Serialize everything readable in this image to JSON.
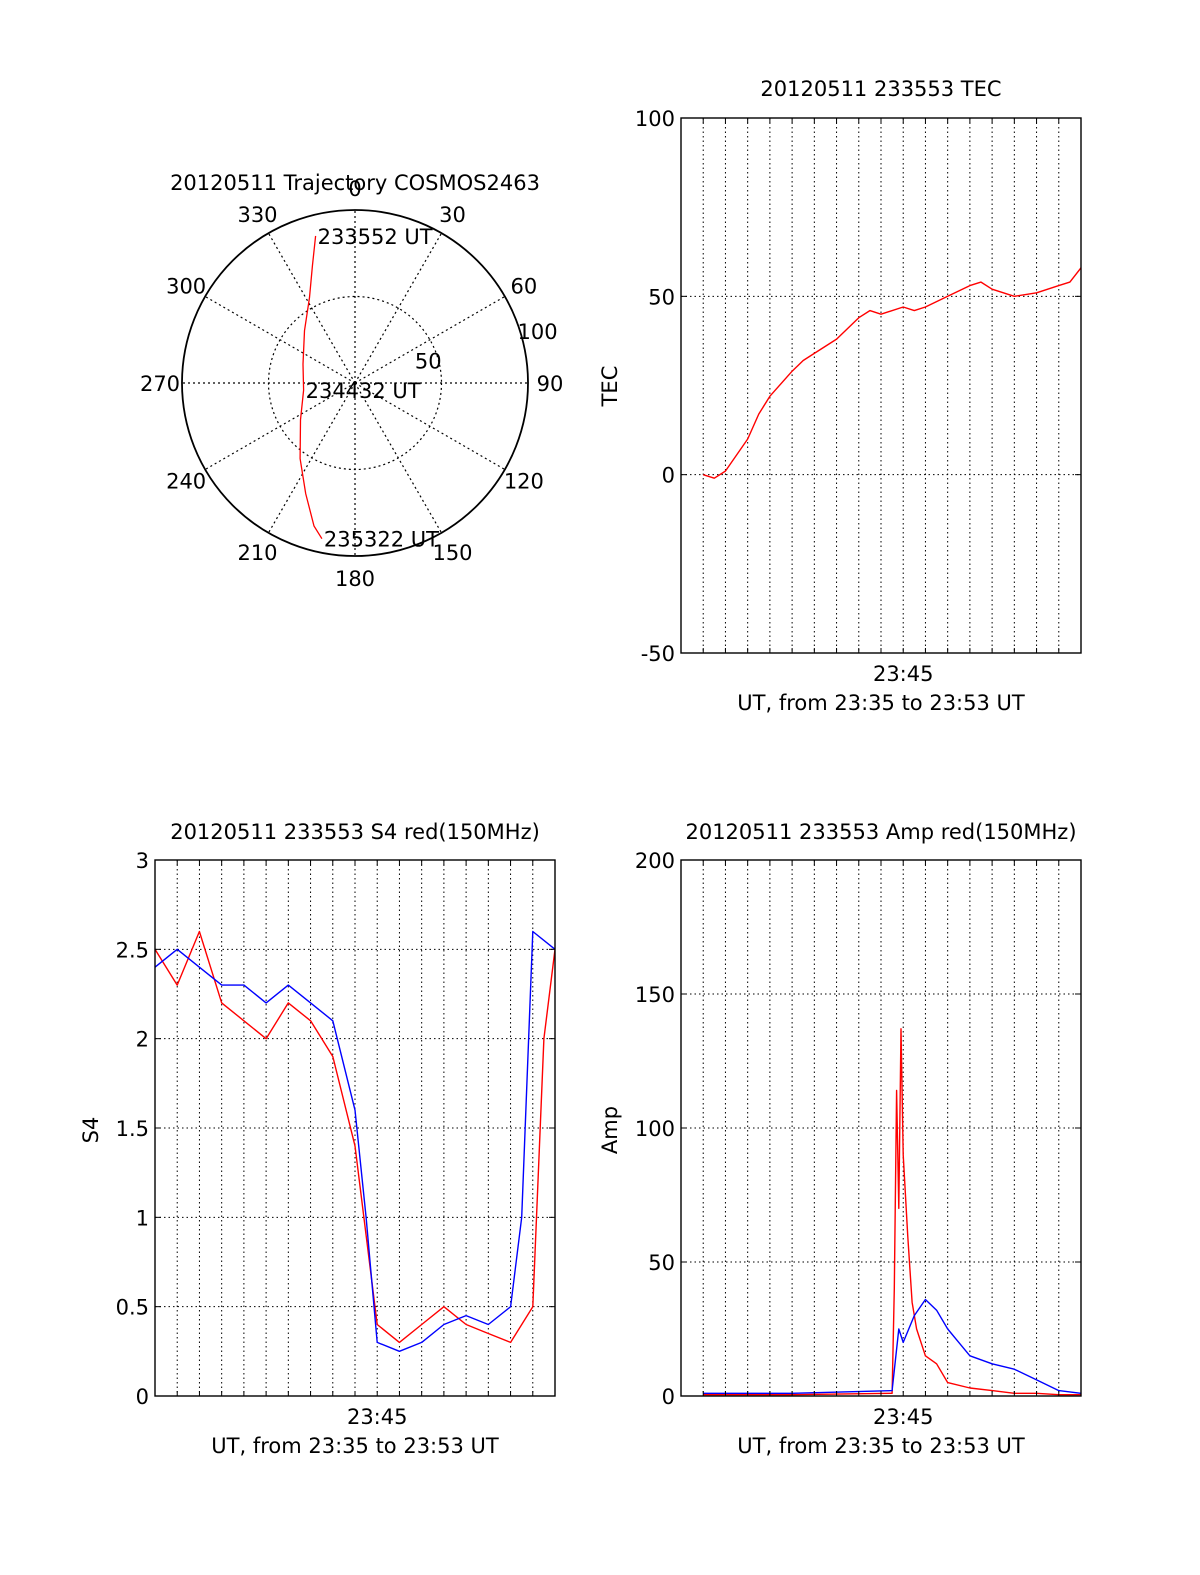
{
  "chart_data": [
    {
      "type": "polar",
      "title": "20120511 Trajectory COSMOS2463",
      "angle_labels": [
        "0",
        "30",
        "60",
        "90",
        "120",
        "150",
        "180",
        "210",
        "240",
        "270",
        "300",
        "330"
      ],
      "radial_labels": [
        "50",
        "100"
      ],
      "rlim": [
        0,
        100
      ],
      "grid": true,
      "series": [
        {
          "color": "#ff0000",
          "points": [
            {
              "az": 345,
              "r": 88
            },
            {
              "az": 340,
              "r": 72
            },
            {
              "az": 332,
              "r": 56
            },
            {
              "az": 316,
              "r": 42
            },
            {
              "az": 290,
              "r": 32
            },
            {
              "az": 262,
              "r": 30
            },
            {
              "az": 236,
              "r": 38
            },
            {
              "az": 216,
              "r": 54
            },
            {
              "az": 204,
              "r": 70
            },
            {
              "az": 196,
              "r": 86
            },
            {
              "az": 192,
              "r": 92
            }
          ]
        }
      ],
      "annotations": [
        {
          "text": "233552 UT",
          "az": 345,
          "r": 88
        },
        {
          "text": "234432 UT",
          "az": 262,
          "r": 30
        },
        {
          "text": "235322 UT",
          "az": 192,
          "r": 92
        }
      ]
    },
    {
      "type": "line",
      "title": "20120511 233553 TEC",
      "xlabel": "UT, from 23:35 to 23:53 UT",
      "ylabel": "TEC",
      "xlim_minutes": [
        35.0,
        53.0
      ],
      "ylim": [
        -50,
        100
      ],
      "yticks": [
        -50,
        0,
        50,
        100
      ],
      "xticks": [
        {
          "minute": 45,
          "label": "23:45"
        }
      ],
      "grid": true,
      "series": [
        {
          "color": "#ff0000",
          "x": [
            36.0,
            36.5,
            37.0,
            38.0,
            38.5,
            39.0,
            40.0,
            40.5,
            41.0,
            42.0,
            43.0,
            43.5,
            44.0,
            45.0,
            45.5,
            46.0,
            47.0,
            48.0,
            48.5,
            49.0,
            50.0,
            51.0,
            52.0,
            52.5,
            53.0
          ],
          "y": [
            0,
            -1,
            1,
            10,
            17,
            22,
            29,
            32,
            34,
            38,
            44,
            46,
            45,
            47,
            46,
            47,
            50,
            53,
            54,
            52,
            50,
            51,
            53,
            54,
            58
          ]
        }
      ]
    },
    {
      "type": "line",
      "title": "20120511 233553 S4 red(150MHz)",
      "xlabel": "UT, from 23:35 to 23:53 UT",
      "ylabel": "S4",
      "xlim_minutes": [
        35.0,
        53.0
      ],
      "ylim": [
        0,
        3
      ],
      "yticks": [
        0,
        0.5,
        1,
        1.5,
        2,
        2.5,
        3
      ],
      "ytick_labels": [
        "0",
        "0.5",
        "1",
        "1.5",
        "2",
        "2.5",
        "3"
      ],
      "xticks": [
        {
          "minute": 45,
          "label": "23:45"
        }
      ],
      "grid": true,
      "series": [
        {
          "color": "#ff0000",
          "x": [
            35.0,
            36.0,
            37.0,
            38.0,
            39.0,
            40.0,
            41.0,
            42.0,
            43.0,
            44.0,
            44.5,
            45.0,
            46.0,
            47.0,
            48.0,
            49.0,
            50.0,
            51.0,
            52.0,
            52.5,
            53.0
          ],
          "y": [
            2.5,
            2.3,
            2.6,
            2.2,
            2.1,
            2.0,
            2.2,
            2.1,
            1.9,
            1.4,
            0.9,
            0.4,
            0.3,
            0.4,
            0.5,
            0.4,
            0.35,
            0.3,
            0.5,
            2.0,
            2.5
          ]
        },
        {
          "color": "#0000ff",
          "x": [
            35.0,
            36.0,
            37.0,
            38.0,
            39.0,
            40.0,
            41.0,
            42.0,
            43.0,
            44.0,
            44.5,
            45.0,
            46.0,
            47.0,
            48.0,
            49.0,
            50.0,
            51.0,
            51.5,
            52.0,
            53.0
          ],
          "y": [
            2.4,
            2.5,
            2.4,
            2.3,
            2.3,
            2.2,
            2.3,
            2.2,
            2.1,
            1.6,
            1.0,
            0.3,
            0.25,
            0.3,
            0.4,
            0.45,
            0.4,
            0.5,
            1.0,
            2.6,
            2.5
          ]
        }
      ]
    },
    {
      "type": "line",
      "title": "20120511 233553 Amp red(150MHz)",
      "xlabel": "UT, from 23:35 to 23:53 UT",
      "ylabel": "Amp",
      "xlim_minutes": [
        35.0,
        53.0
      ],
      "ylim": [
        0,
        200
      ],
      "yticks": [
        0,
        50,
        100,
        150,
        200
      ],
      "xticks": [
        {
          "minute": 45,
          "label": "23:45"
        }
      ],
      "grid": true,
      "series": [
        {
          "color": "#ff0000",
          "x": [
            36.0,
            40.0,
            44.5,
            44.6,
            44.7,
            44.8,
            44.9,
            45.0,
            45.2,
            45.4,
            45.6,
            46.0,
            46.5,
            47.0,
            48.0,
            49.0,
            50.0,
            51.0,
            52.0,
            53.0
          ],
          "y": [
            0.5,
            0.5,
            1,
            40,
            114,
            70,
            137,
            90,
            60,
            35,
            25,
            15,
            12,
            5,
            3,
            2,
            1,
            1,
            0.5,
            0.5
          ]
        },
        {
          "color": "#0000ff",
          "x": [
            36.0,
            40.0,
            44.5,
            44.8,
            45.0,
            45.5,
            46.0,
            46.5,
            47.0,
            47.5,
            48.0,
            49.0,
            50.0,
            51.0,
            51.5,
            52.0,
            53.0
          ],
          "y": [
            1,
            1,
            2,
            25,
            20,
            30,
            36,
            32,
            25,
            20,
            15,
            12,
            10,
            6,
            4,
            2,
            1
          ]
        }
      ]
    }
  ]
}
